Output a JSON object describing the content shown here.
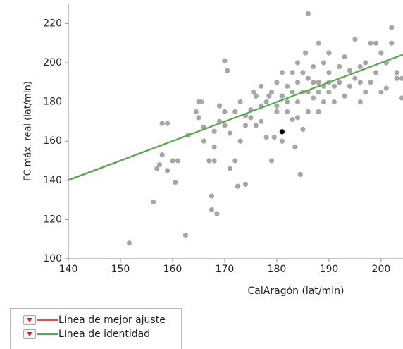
{
  "chart_data": {
    "type": "scatter",
    "x_label": "CalAragón (lat/min)",
    "y_label": "FC máx. real (lat/min)",
    "xlim": [
      140,
      204.2
    ],
    "ylim": [
      100,
      230.2
    ],
    "xticks": [
      140,
      150,
      160,
      170,
      180,
      190,
      200
    ],
    "yticks": [
      100,
      120,
      140,
      160,
      180,
      200,
      220
    ],
    "points": {
      "color": "#a6a6a6",
      "x": [
        151.7,
        156.3,
        157,
        157.5,
        158,
        159,
        158,
        159,
        160,
        160.5,
        161,
        162.5,
        163,
        164.5,
        165,
        165.5,
        165,
        166,
        166,
        167,
        168,
        167.5,
        167.5,
        168.5,
        168,
        168,
        169,
        169,
        170,
        170.5,
        170,
        171,
        171,
        172,
        172.5,
        174,
        173,
        174,
        175,
        175.5,
        176,
        177,
        177,
        178,
        178.5,
        179,
        179.5,
        180,
        181,
        182,
        183,
        183.5,
        184,
        184.5,
        185,
        186,
        185.5,
        184,
        186,
        187,
        188,
        188,
        189,
        190,
        190,
        191,
        192,
        193,
        193,
        194,
        195,
        196,
        196,
        197,
        198,
        199,
        199,
        200,
        200,
        201,
        201,
        202,
        202,
        203,
        203,
        204,
        204,
        180,
        181,
        182,
        183,
        184,
        185,
        186,
        187,
        188,
        189,
        190,
        191,
        192,
        178,
        179,
        180,
        181,
        182,
        183,
        184,
        185,
        186,
        187,
        188,
        189,
        190,
        176,
        177,
        175,
        194,
        195,
        196,
        197,
        198,
        170,
        172,
        173,
        174
      ],
      "y": [
        108,
        129,
        146,
        148,
        169,
        169,
        153,
        145,
        150,
        139,
        150,
        112,
        163,
        175,
        180,
        180,
        172,
        167,
        160,
        150,
        150,
        132,
        125,
        123,
        157,
        165,
        170,
        178,
        201,
        196,
        175,
        164,
        146,
        150,
        137,
        138,
        160,
        168,
        176,
        185,
        168,
        170,
        178,
        162,
        183,
        150,
        162,
        175,
        160,
        188,
        171,
        157,
        172,
        143,
        166,
        225,
        205,
        200,
        175,
        190,
        185,
        210,
        180,
        195,
        205,
        188,
        198,
        183,
        203,
        196,
        212,
        190,
        180,
        200,
        210,
        195,
        210,
        205,
        185,
        187,
        200,
        210,
        218,
        195,
        192,
        182,
        192,
        190,
        195,
        180,
        185,
        190,
        195,
        185,
        182,
        190,
        200,
        185,
        180,
        190,
        180,
        185,
        178,
        183,
        175,
        195,
        180,
        185,
        192,
        198,
        175,
        188,
        190,
        183,
        188,
        172,
        188,
        192,
        198,
        185,
        190,
        168,
        175,
        180,
        173
      ]
    },
    "highlight": {
      "x": 181,
      "y": 164.8,
      "color": "#000000"
    },
    "series": [
      {
        "name": "Línea de mejor ajuste",
        "color": "#d9534f",
        "x": [
          140,
          204.2
        ],
        "values": [
          140.2,
          204.1
        ]
      },
      {
        "name": "Línea de identidad",
        "color": "#4caf50",
        "x": [
          140,
          204.2
        ],
        "values": [
          140,
          204.2
        ]
      }
    ]
  }
}
